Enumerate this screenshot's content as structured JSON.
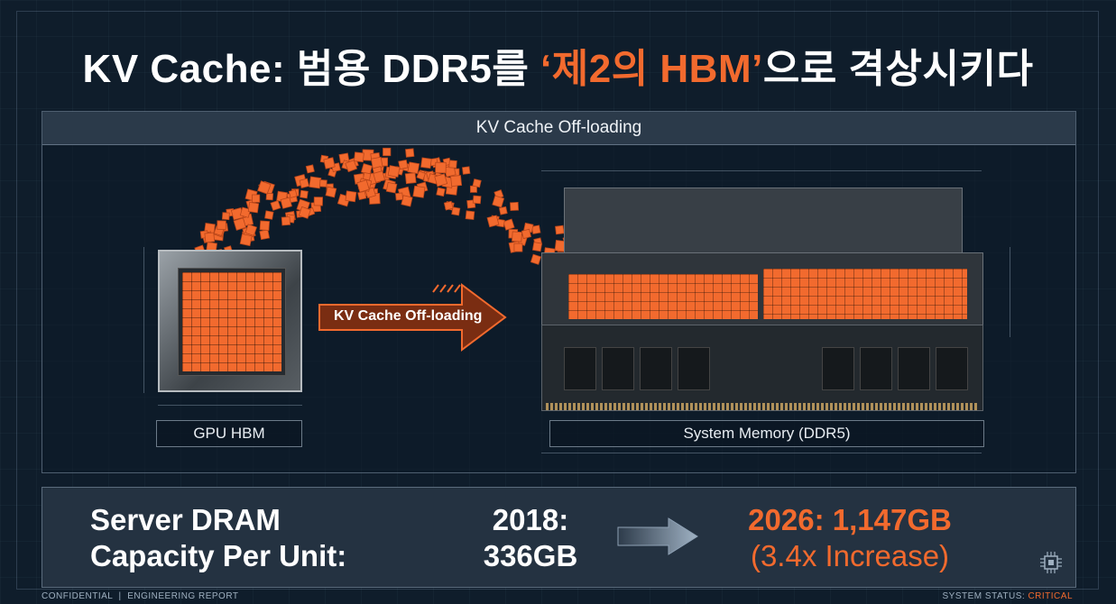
{
  "title": {
    "prefix": "KV Cache: 범용 DDR5를 ",
    "accent": "‘제2의 HBM’",
    "suffix": "으로 격상시키다"
  },
  "panel": {
    "header": "KV Cache Off-loading",
    "arrow_label": "KV Cache Off-loading",
    "gpu_label": "GPU HBM",
    "ddr_label": "System Memory (DDR5)"
  },
  "stats": {
    "label_line1": "Server DRAM",
    "label_line2": "Capacity Per Unit:",
    "y2018_line1": "2018:",
    "y2018_line2": "336GB",
    "y2026_line1": "2026: 1,147GB",
    "y2026_line2": "(3.4x Increase)"
  },
  "footer": {
    "confidential": "CONFIDENTIAL",
    "separator": "|",
    "report": "ENGINEERING REPORT",
    "status_label": "SYSTEM STATUS:",
    "status_value": "CRITICAL"
  },
  "colors": {
    "accent": "#f26a2e",
    "background": "#0f1d2b",
    "panel_header": "#2b3a4a"
  },
  "icons": [
    "arrow-right-icon",
    "cpu-chip-icon"
  ]
}
